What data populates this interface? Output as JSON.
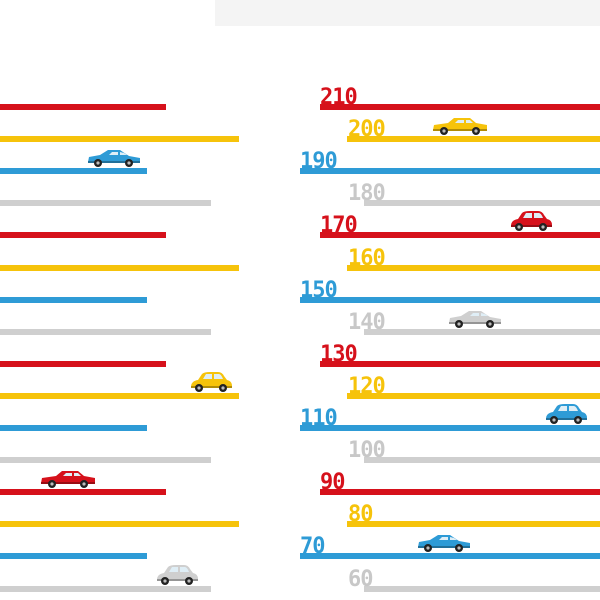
{
  "colors": {
    "red": "#d6111b",
    "yellow": "#f6c30b",
    "blue": "#2e9bd6",
    "gray": "#cfcfcf",
    "numGray": "#c8c8c8"
  },
  "speed_labels": [
    {
      "value": "210",
      "color": "red"
    },
    {
      "value": "200",
      "color": "yellow"
    },
    {
      "value": "190",
      "color": "blue"
    },
    {
      "value": "180",
      "color": "gray"
    },
    {
      "value": "170",
      "color": "red"
    },
    {
      "value": "160",
      "color": "yellow"
    },
    {
      "value": "150",
      "color": "blue"
    },
    {
      "value": "140",
      "color": "gray"
    },
    {
      "value": "130",
      "color": "red"
    },
    {
      "value": "120",
      "color": "yellow"
    },
    {
      "value": "110",
      "color": "blue"
    },
    {
      "value": "100",
      "color": "gray"
    },
    {
      "value": "90",
      "color": "red"
    },
    {
      "value": "80",
      "color": "yellow"
    },
    {
      "value": "70",
      "color": "blue"
    },
    {
      "value": "60",
      "color": "gray"
    }
  ],
  "left_stripes": [
    "red",
    "yellow",
    "blue",
    "gray",
    "red",
    "yellow",
    "blue",
    "gray",
    "red",
    "yellow",
    "blue",
    "gray",
    "red",
    "yellow",
    "blue",
    "gray"
  ],
  "cars": [
    {
      "icon": "blue-coupe-icon",
      "color": "blue",
      "column": "left",
      "row": 2
    },
    {
      "icon": "yellow-beetle-icon",
      "color": "yellow",
      "column": "left",
      "row": 9
    },
    {
      "icon": "red-sedan-icon",
      "color": "red",
      "column": "left",
      "row": 12
    },
    {
      "icon": "gray-beetle-icon",
      "color": "gray",
      "column": "left",
      "row": 15
    },
    {
      "icon": "yellow-sedan-icon",
      "color": "yellow",
      "column": "right",
      "row": 1
    },
    {
      "icon": "red-beetle-icon",
      "color": "red",
      "column": "right",
      "row": 4
    },
    {
      "icon": "gray-coupe-icon",
      "color": "gray",
      "column": "right",
      "row": 7
    },
    {
      "icon": "blue-beetle-icon",
      "color": "blue",
      "column": "right",
      "row": 10
    },
    {
      "icon": "blue-coupe-icon",
      "color": "blue",
      "column": "right",
      "row": 14
    }
  ]
}
